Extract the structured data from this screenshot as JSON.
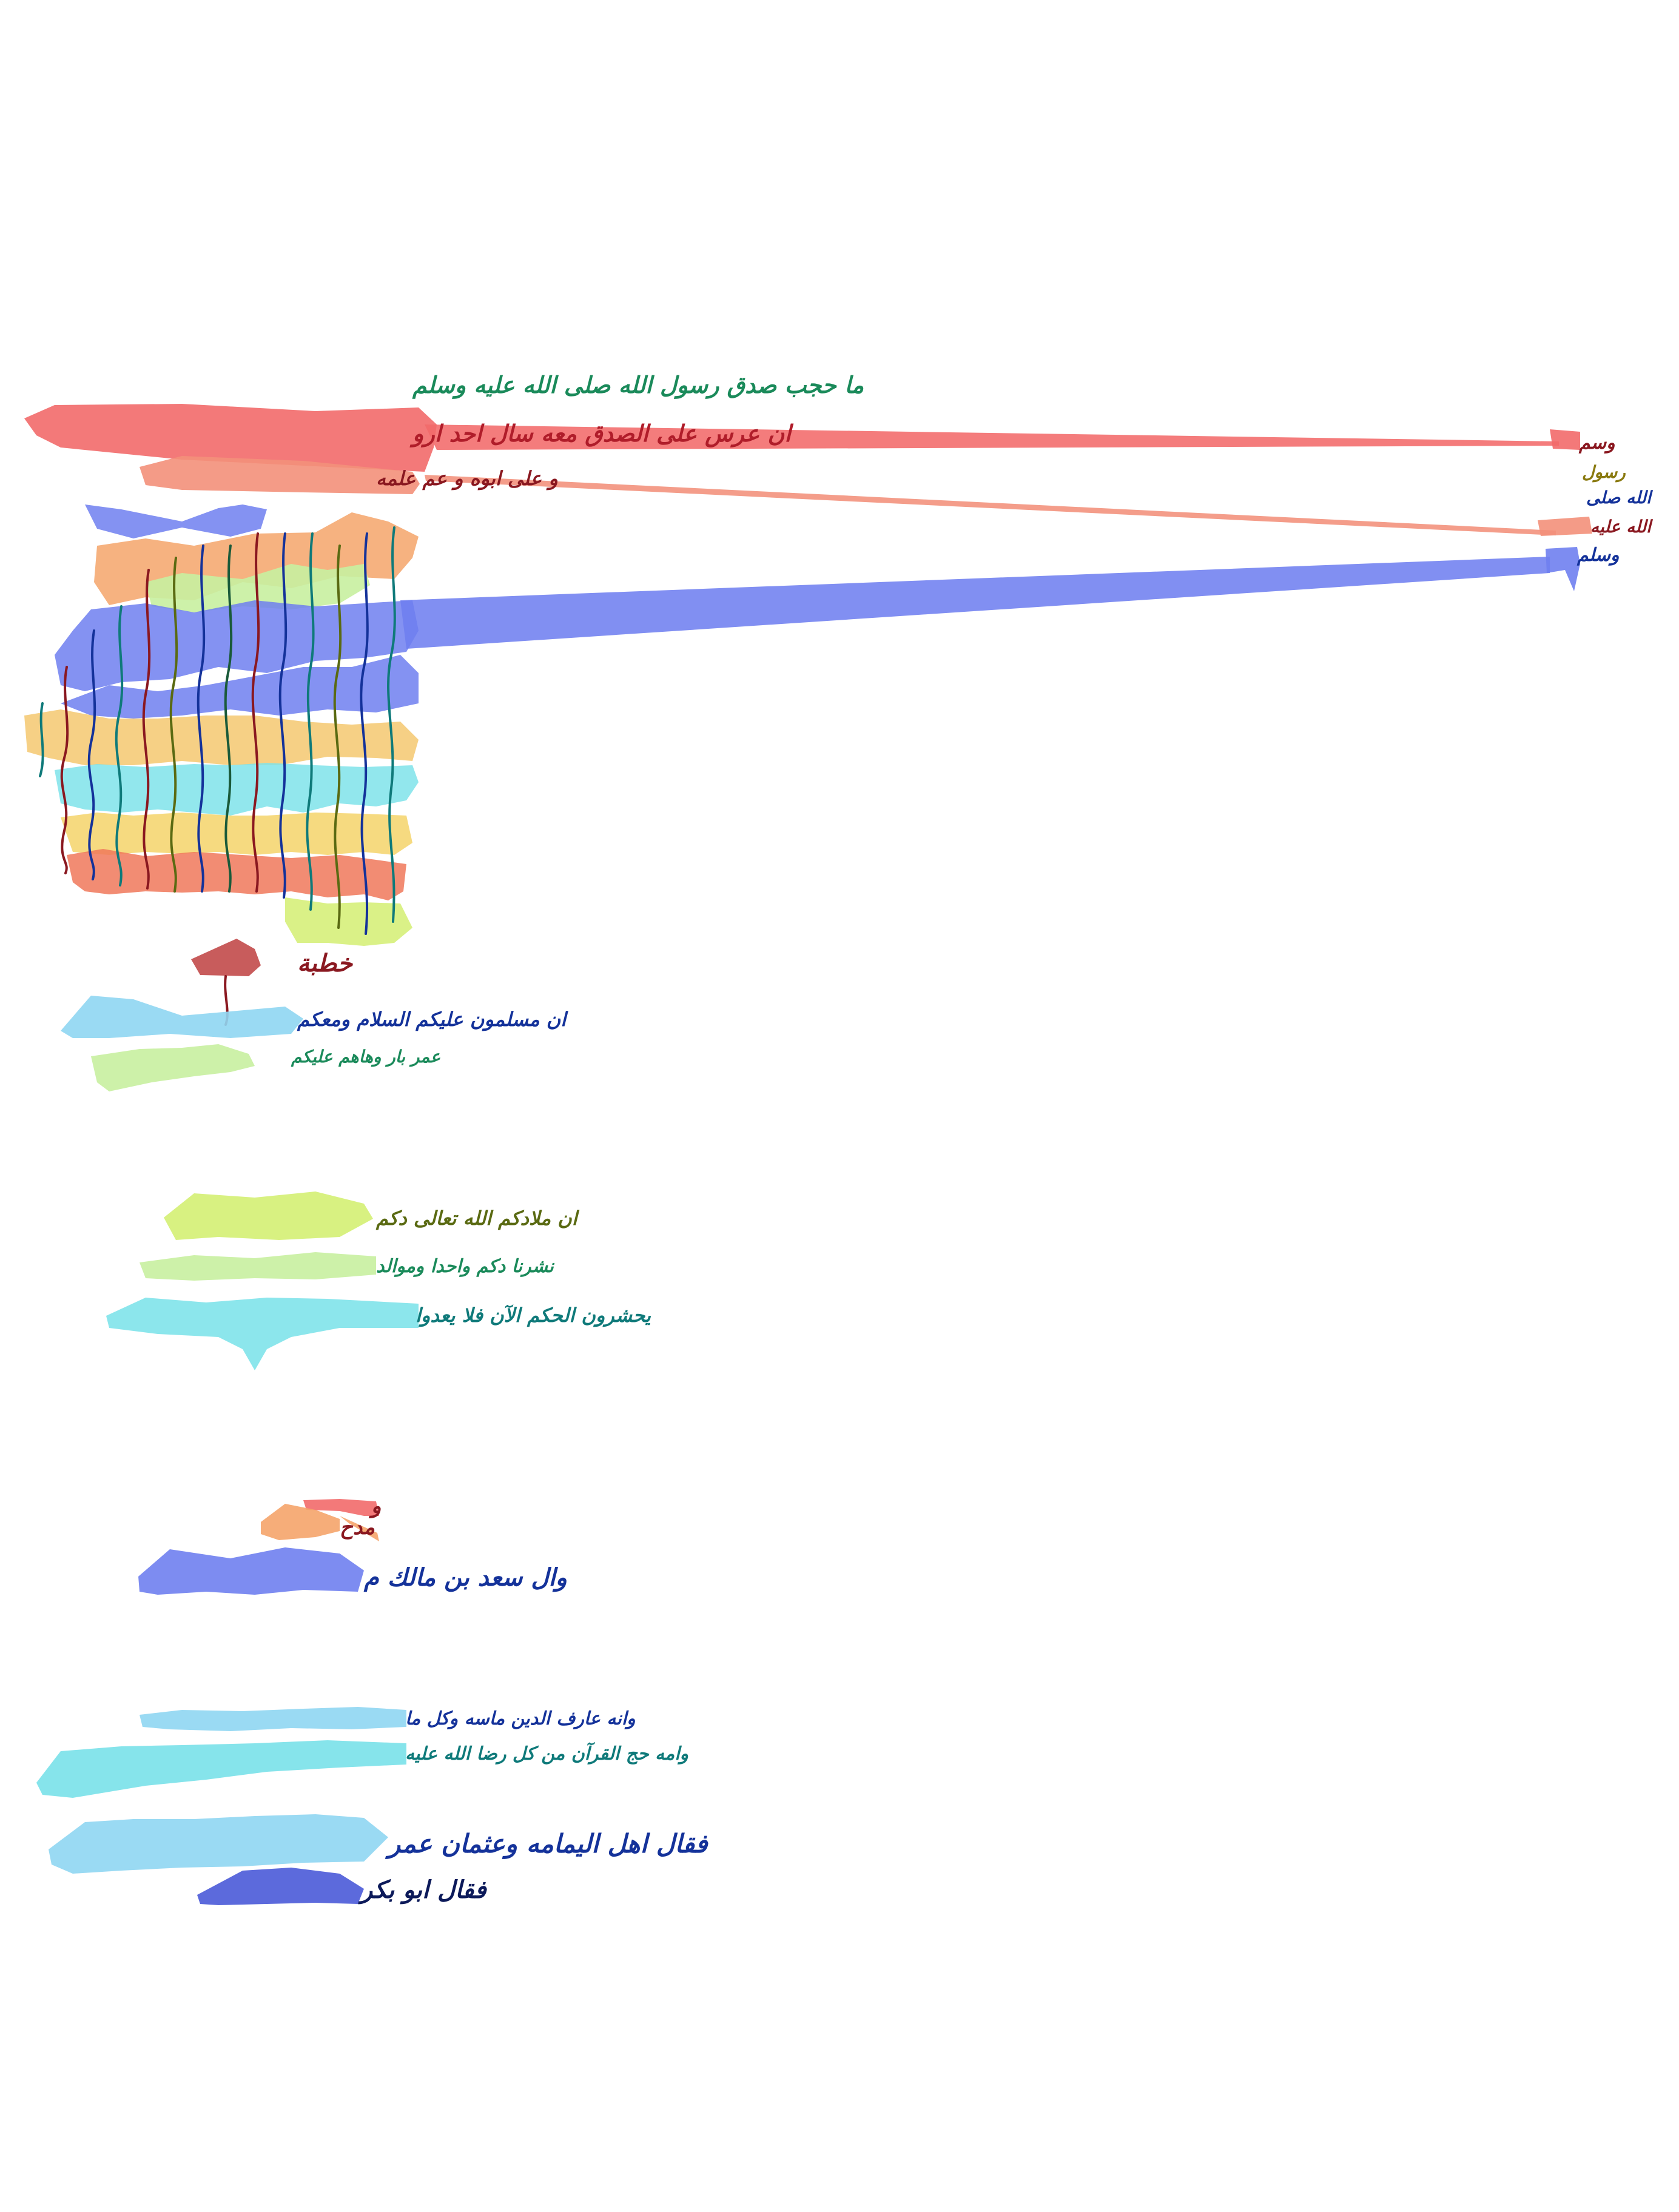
{
  "page": {
    "background": "#ffffff"
  },
  "colors": {
    "red": "#f26a6a",
    "salmon": "#f3907a",
    "blue": "#6f7ff0",
    "orange": "#f5a46a",
    "light_green": "#c8f0a0",
    "yellow": "#f5d36a",
    "cyan": "#7fe3ea",
    "teal": "#3fc8c0",
    "sky": "#8fd6f2",
    "lime": "#d6f07a",
    "dark_red": "#c24a4a",
    "navy": "#4a5ad8",
    "ink_green": "#1a8a5a",
    "ink_red": "#b01d2a",
    "ink_darkred": "#8a1820",
    "ink_blue": "#14329a",
    "ink_teal": "#0f7a7a",
    "ink_olive": "#5a6a12"
  },
  "main_text": {
    "line_1": "ما حجب صدق رسول الله صلى الله عليه وسلم",
    "line_2": "ان عرس على الصدق معه سال احد ارو",
    "line_3": "و على ابوه و عم علمه"
  },
  "margin_annotation": {
    "lines": [
      "وسم",
      "رسول",
      "الله صلى",
      "الله عليه",
      "وسلم"
    ]
  },
  "section_2": {
    "heading": "خطبة",
    "line_1": "ان مسلمون عليكم السلام ومعكم",
    "line_2": "عمر بار وهاهم عليكم"
  },
  "section_3": {
    "line_1": "ان ملادكم الله تعالى دكم",
    "line_2": "نشرنا دكم واحدا وموالد",
    "line_3": "يحشرون الحكم الآن فلا يعدوا"
  },
  "section_4": {
    "heading_1": "و",
    "heading_2": "مدح",
    "line_1": "وال سعد بن مالك م"
  },
  "section_5": {
    "line_1": "وانه عارف الدين ماسه وكل ما",
    "line_2": "وامه حج القرآن من كل رضا الله عليه",
    "line_3": "فقال اهل اليمامه وعثمان عمر",
    "line_4": "فقال ابو بكر"
  }
}
